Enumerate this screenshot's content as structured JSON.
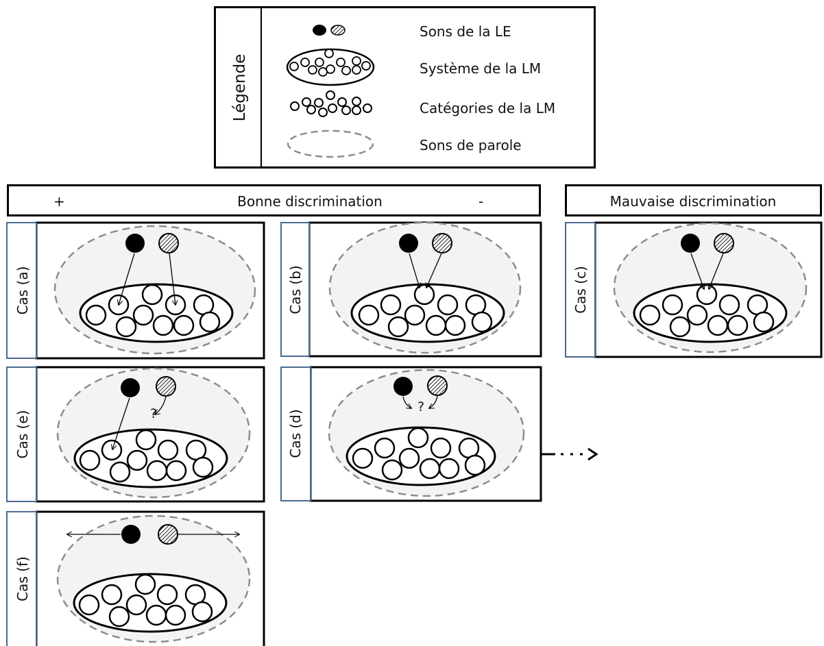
{
  "legend": {
    "title": "Légende",
    "items": [
      {
        "icon": "le-sound-dots-icon",
        "label": "Sons de la LE"
      },
      {
        "icon": "lm-system-ellipse-icon",
        "label": "Système  de la LM"
      },
      {
        "icon": "lm-categories-cluster-icon",
        "label": "Catégories  de la LM"
      },
      {
        "icon": "speech-sounds-dashed-ellipse-icon",
        "label": "Sons de parole"
      }
    ]
  },
  "header_good": {
    "plus": "+",
    "label": "Bonne discrimination",
    "minus": "-"
  },
  "header_bad": {
    "label": "Mauvaise discrimination"
  },
  "panels": {
    "a": {
      "label": "Cas (a)"
    },
    "b": {
      "label": "Cas (b)"
    },
    "c": {
      "label": "Cas (c)"
    },
    "d": {
      "label": "Cas (d)",
      "question": "?"
    },
    "e": {
      "label": "Cas (e)",
      "question": "?"
    },
    "f": {
      "label": "Cas (f)"
    }
  },
  "colors": {
    "border": "#000000",
    "label_border": "#4a6a8f",
    "dash": "#8c8c8c",
    "fill_light": "#f3f3f3"
  }
}
